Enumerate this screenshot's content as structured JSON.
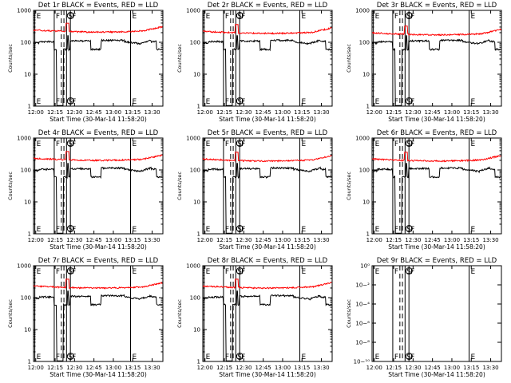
{
  "chart_data": {
    "type": "line",
    "x_label": "Start Time (30-Mar-14 11:58:20)",
    "y_label": "Counts/sec",
    "x_ticks": [
      "12:00",
      "12:15",
      "12:30",
      "12:45",
      "13:00",
      "13:15",
      "13:30"
    ],
    "x_range_min": [
      0,
      100
    ],
    "marker_labels": [
      "E",
      "F",
      "S",
      "F",
      "E"
    ],
    "marker_times_min": [
      1,
      16,
      25.5,
      28.5,
      75
    ],
    "dashed_times_min": [
      21.5,
      23.5
    ],
    "series_colors": {
      "events": "#000000",
      "lld": "#ff0000"
    },
    "panels": [
      {
        "title": "Det 1r BLACK = Events, RED = LLD",
        "y_ticks": [
          "1",
          "10",
          "100",
          "1000"
        ],
        "ylim_log10": [
          0,
          3
        ],
        "black_level": 100,
        "red_level": 220
      },
      {
        "title": "Det 2r BLACK = Events, RED = LLD",
        "y_ticks": [
          "1",
          "10",
          "100",
          "1000"
        ],
        "ylim_log10": [
          0,
          3
        ],
        "black_level": 100,
        "red_level": 200
      },
      {
        "title": "Det 3r BLACK = Events, RED = LLD",
        "y_ticks": [
          "1",
          "10",
          "100",
          "1000"
        ],
        "ylim_log10": [
          0,
          3
        ],
        "black_level": 100,
        "red_level": 180
      },
      {
        "title": "Det 4r BLACK = Events, RED = LLD",
        "y_ticks": [
          "1",
          "10",
          "100",
          "1000"
        ],
        "ylim_log10": [
          0,
          3
        ],
        "black_level": 100,
        "red_level": 210
      },
      {
        "title": "Det 5r BLACK = Events, RED = LLD",
        "y_ticks": [
          "1",
          "10",
          "100",
          "1000"
        ],
        "ylim_log10": [
          0,
          3
        ],
        "black_level": 100,
        "red_level": 200
      },
      {
        "title": "Det 6r BLACK = Events, RED = LLD",
        "y_ticks": [
          "1",
          "10",
          "100",
          "1000"
        ],
        "ylim_log10": [
          0,
          3
        ],
        "black_level": 100,
        "red_level": 200
      },
      {
        "title": "Det 7r BLACK = Events, RED = LLD",
        "y_ticks": [
          "1",
          "10",
          "100",
          "1000"
        ],
        "ylim_log10": [
          0,
          3
        ],
        "black_level": 100,
        "red_level": 210
      },
      {
        "title": "Det 8r BLACK = Events, RED = LLD",
        "y_ticks": [
          "1",
          "10",
          "100",
          "1000"
        ],
        "ylim_log10": [
          0,
          3
        ],
        "black_level": 100,
        "red_level": 210
      },
      {
        "title": "Det 9r BLACK = Events, RED = LLD",
        "y_ticks": [
          "10−¹⁰",
          "10−⁸",
          "10−⁶",
          "10−⁴",
          "10−²",
          "10⁰"
        ],
        "ylim_log10": [
          -10,
          0
        ],
        "black_level": null,
        "red_level": null
      }
    ]
  }
}
